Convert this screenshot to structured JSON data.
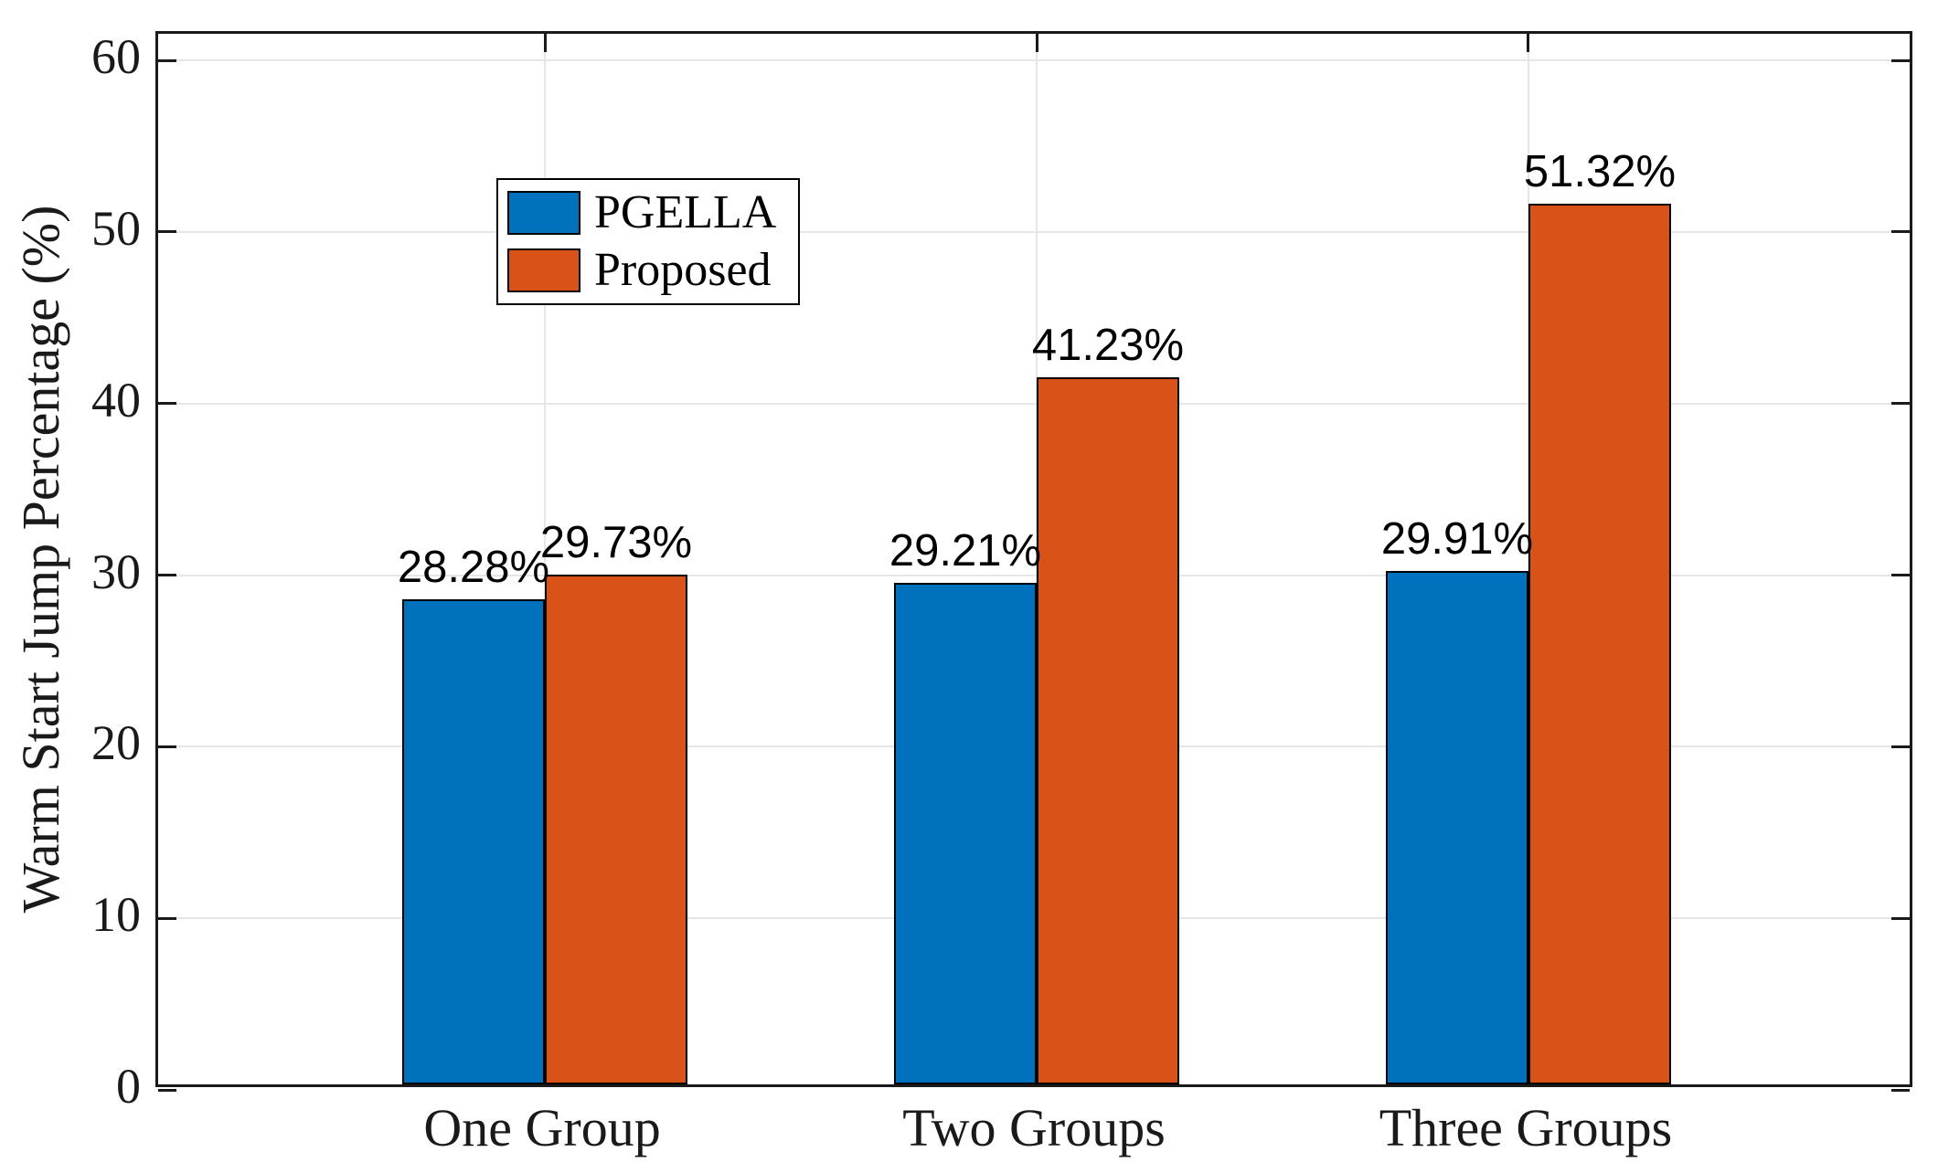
{
  "chart_data": {
    "type": "bar",
    "categories": [
      "One Group",
      "Two Groups",
      "Three Groups"
    ],
    "series": [
      {
        "name": "PGELLA",
        "color": "#0072BD",
        "values": [
          28.28,
          29.21,
          29.91
        ],
        "labels": [
          "28.28%",
          "29.21%",
          "29.91%"
        ]
      },
      {
        "name": "Proposed",
        "color": "#D95319",
        "values": [
          29.73,
          41.23,
          51.32
        ],
        "labels": [
          "29.73%",
          "41.23%",
          "51.32%"
        ]
      }
    ],
    "ylabel": "Warm Start Jump Percentage (%)",
    "ylim": [
      0,
      61.55
    ],
    "yticks": [
      0,
      10,
      20,
      30,
      40,
      50,
      60
    ],
    "ytick_labels": [
      "0",
      "10",
      "20",
      "30",
      "40",
      "50",
      "60"
    ],
    "grid": true,
    "legend": {
      "position": "upper-left",
      "entries": [
        "PGELLA",
        "Proposed"
      ]
    },
    "colors": {
      "grid": "#e6e6e6",
      "axis": "#1a1a1a",
      "bar_edge": "#000000",
      "background": "#ffffff"
    }
  }
}
